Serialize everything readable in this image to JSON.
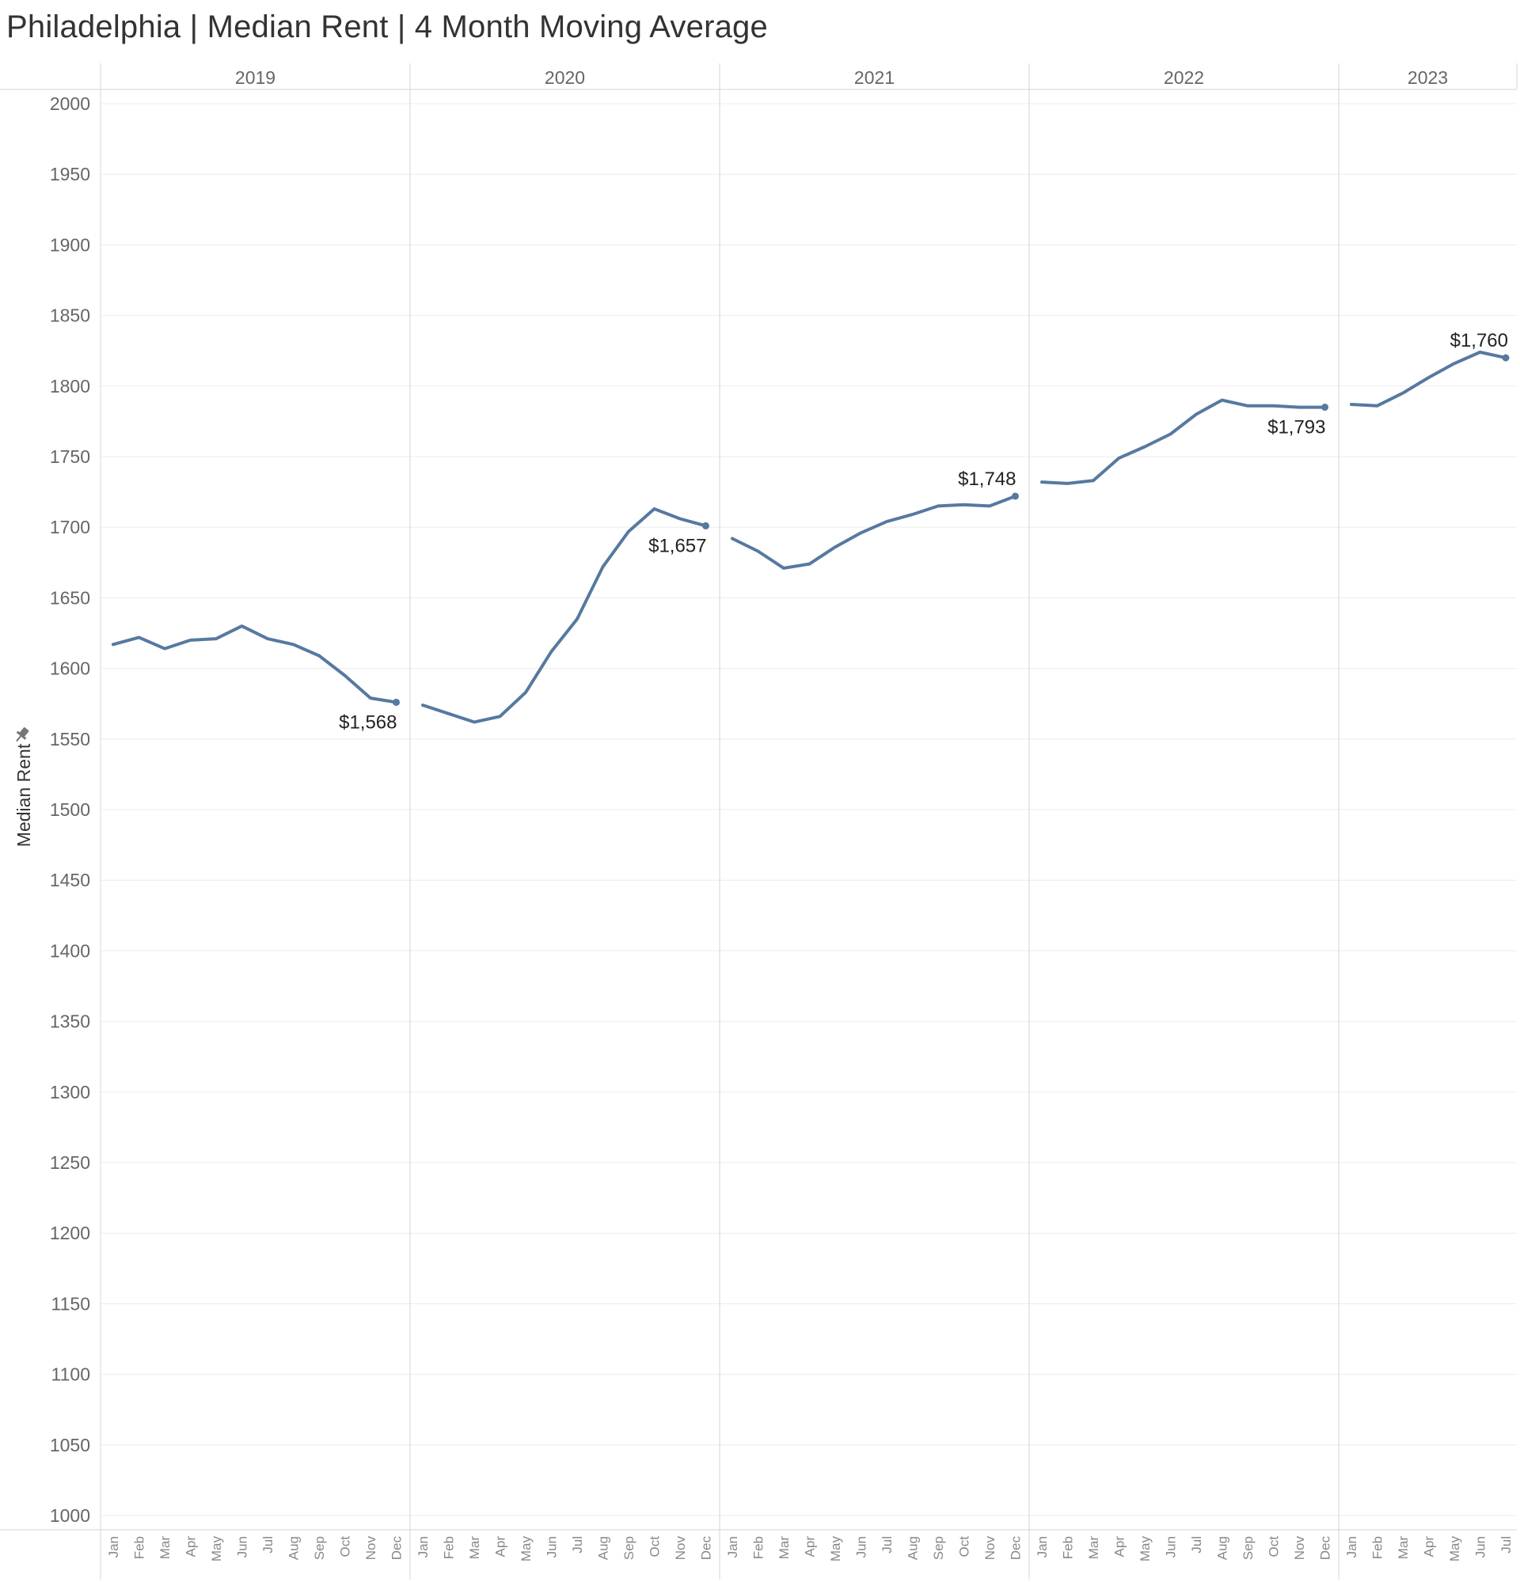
{
  "title": "Philadelphia | Median Rent | 4 Month Moving Average",
  "colors": {
    "line": "#5679A0",
    "grid": "#ececec",
    "divider": "#d4d4d4"
  },
  "chart_data": {
    "type": "line",
    "title": "Philadelphia | Median Rent | 4 Month Moving Average",
    "ylabel": "Median Rent",
    "xlabel": "",
    "ylim": [
      1000,
      2000
    ],
    "yticks": [
      1000,
      1050,
      1100,
      1150,
      1200,
      1250,
      1300,
      1350,
      1400,
      1450,
      1500,
      1550,
      1600,
      1650,
      1700,
      1750,
      1800,
      1850,
      1900,
      1950,
      2000
    ],
    "grid": true,
    "months": [
      "Jan",
      "Feb",
      "Mar",
      "Apr",
      "May",
      "Jun",
      "Jul",
      "Aug",
      "Sep",
      "Oct",
      "Nov",
      "Dec"
    ],
    "panels": [
      {
        "year": "2019",
        "values": [
          1617,
          1622,
          1614,
          1620,
          1621,
          1630,
          1621,
          1617,
          1609,
          1595,
          1579,
          1576
        ],
        "annotation": {
          "text": "$1,568",
          "month": "Dec",
          "position": "below"
        }
      },
      {
        "year": "2020",
        "values": [
          1574,
          1568,
          1562,
          1566,
          1583,
          1612,
          1635,
          1672,
          1697,
          1713,
          1706,
          1701
        ],
        "annotation": {
          "text": "$1,657",
          "month": "Dec",
          "position": "below"
        }
      },
      {
        "year": "2021",
        "values": [
          1692,
          1683,
          1671,
          1674,
          1686,
          1696,
          1704,
          1709,
          1715,
          1716,
          1715,
          1722
        ],
        "annotation": {
          "text": "$1,748",
          "month": "Dec",
          "position": "above"
        }
      },
      {
        "year": "2022",
        "values": [
          1732,
          1731,
          1733,
          1749,
          1757,
          1766,
          1780,
          1790,
          1786,
          1786,
          1785,
          1785
        ],
        "annotation": {
          "text": "$1,793",
          "month": "Dec",
          "position": "below"
        }
      },
      {
        "year": "2023",
        "values": [
          1787,
          1786,
          1795,
          1806,
          1816,
          1824,
          1820
        ],
        "annotation": {
          "text": "$1,760",
          "month": "Jul",
          "position": "above"
        }
      }
    ]
  }
}
